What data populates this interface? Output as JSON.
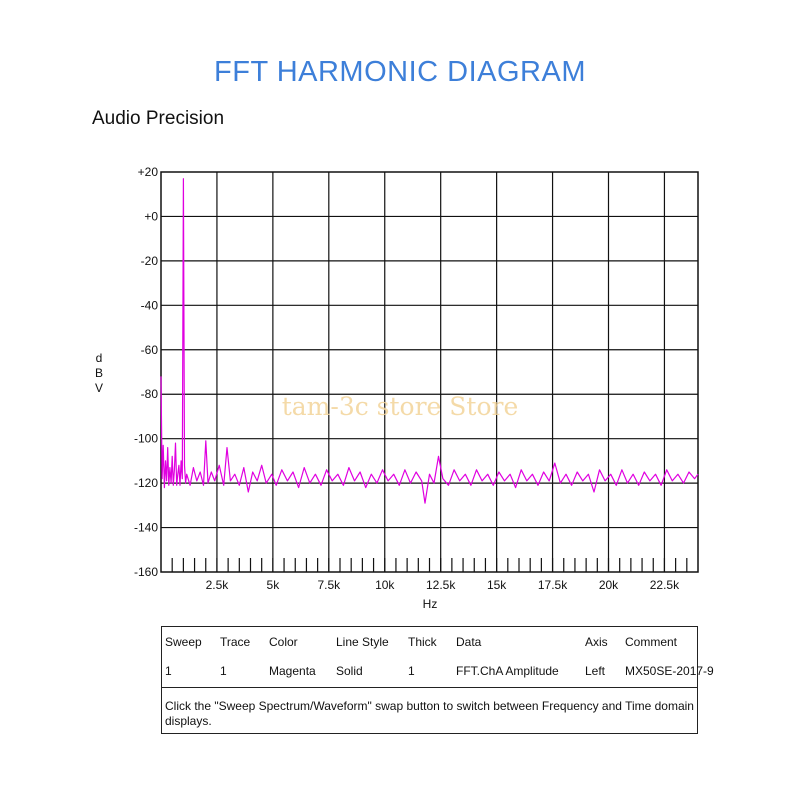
{
  "header": {
    "title": "FFT  HARMONIC DIAGRAM",
    "brand": "Audio Precision"
  },
  "watermark": "tam-3c store Store",
  "chart_data": {
    "type": "line",
    "title": "",
    "xlabel": "Hz",
    "ylabel": "dBV",
    "ylabel_letters": [
      "d",
      "B",
      "V"
    ],
    "xlim": [
      0,
      24000
    ],
    "ylim": [
      -160,
      20
    ],
    "y_ticks": [
      "+20",
      "+0",
      "-20",
      "-40",
      "-60",
      "-80",
      "-100",
      "-120",
      "-140",
      "-160"
    ],
    "y_tick_values": [
      20,
      0,
      -20,
      -40,
      -60,
      -80,
      -100,
      -120,
      -140,
      -160
    ],
    "x_ticks": [
      "2.5k",
      "5k",
      "7.5k",
      "10k",
      "12.5k",
      "15k",
      "17.5k",
      "20k",
      "22.5k"
    ],
    "x_tick_values": [
      2500,
      5000,
      7500,
      10000,
      12500,
      15000,
      17500,
      20000,
      22500
    ],
    "grid": true,
    "series": [
      {
        "color": "#e000e0",
        "points": [
          [
            0,
            -72
          ],
          [
            50,
            -118
          ],
          [
            100,
            -103
          ],
          [
            150,
            -122
          ],
          [
            200,
            -110
          ],
          [
            250,
            -119
          ],
          [
            300,
            -104
          ],
          [
            350,
            -121
          ],
          [
            400,
            -113
          ],
          [
            450,
            -120
          ],
          [
            500,
            -108
          ],
          [
            550,
            -121
          ],
          [
            600,
            -114
          ],
          [
            650,
            -102
          ],
          [
            700,
            -121
          ],
          [
            750,
            -116
          ],
          [
            800,
            -112
          ],
          [
            850,
            -121
          ],
          [
            900,
            -110
          ],
          [
            950,
            -118
          ],
          [
            1000,
            17
          ],
          [
            1050,
            -112
          ],
          [
            1100,
            -120
          ],
          [
            1150,
            -116
          ],
          [
            1300,
            -121
          ],
          [
            1450,
            -113
          ],
          [
            1600,
            -119
          ],
          [
            1750,
            -115
          ],
          [
            1900,
            -121
          ],
          [
            2000,
            -101
          ],
          [
            2100,
            -120
          ],
          [
            2250,
            -115
          ],
          [
            2400,
            -119
          ],
          [
            2600,
            -112
          ],
          [
            2800,
            -121
          ],
          [
            2950,
            -104
          ],
          [
            3100,
            -119
          ],
          [
            3300,
            -116
          ],
          [
            3500,
            -121
          ],
          [
            3700,
            -113
          ],
          [
            3900,
            -124
          ],
          [
            4100,
            -115
          ],
          [
            4300,
            -119
          ],
          [
            4500,
            -112
          ],
          [
            4700,
            -120
          ],
          [
            4950,
            -116
          ],
          [
            5150,
            -121
          ],
          [
            5400,
            -114
          ],
          [
            5650,
            -119
          ],
          [
            5900,
            -115
          ],
          [
            6150,
            -122
          ],
          [
            6400,
            -113
          ],
          [
            6650,
            -120
          ],
          [
            6900,
            -116
          ],
          [
            7150,
            -121
          ],
          [
            7400,
            -114
          ],
          [
            7650,
            -119
          ],
          [
            7900,
            -116
          ],
          [
            8150,
            -121
          ],
          [
            8400,
            -113
          ],
          [
            8650,
            -119
          ],
          [
            8900,
            -115
          ],
          [
            9150,
            -122
          ],
          [
            9400,
            -116
          ],
          [
            9650,
            -120
          ],
          [
            9900,
            -114
          ],
          [
            10150,
            -119
          ],
          [
            10400,
            -116
          ],
          [
            10650,
            -121
          ],
          [
            10900,
            -114
          ],
          [
            11150,
            -120
          ],
          [
            11400,
            -115
          ],
          [
            11650,
            -119
          ],
          [
            11800,
            -129
          ],
          [
            12000,
            -116
          ],
          [
            12200,
            -120
          ],
          [
            12400,
            -108
          ],
          [
            12600,
            -118
          ],
          [
            12850,
            -121
          ],
          [
            13100,
            -114
          ],
          [
            13350,
            -119
          ],
          [
            13600,
            -116
          ],
          [
            13850,
            -121
          ],
          [
            14100,
            -114
          ],
          [
            14350,
            -119
          ],
          [
            14600,
            -116
          ],
          [
            14850,
            -121
          ],
          [
            15100,
            -115
          ],
          [
            15350,
            -119
          ],
          [
            15600,
            -116
          ],
          [
            15850,
            -122
          ],
          [
            16100,
            -114
          ],
          [
            16350,
            -119
          ],
          [
            16600,
            -116
          ],
          [
            16850,
            -121
          ],
          [
            17100,
            -115
          ],
          [
            17350,
            -119
          ],
          [
            17600,
            -111
          ],
          [
            17850,
            -120
          ],
          [
            18100,
            -116
          ],
          [
            18350,
            -121
          ],
          [
            18600,
            -115
          ],
          [
            18850,
            -119
          ],
          [
            19100,
            -116
          ],
          [
            19350,
            -124
          ],
          [
            19600,
            -114
          ],
          [
            19850,
            -119
          ],
          [
            20100,
            -116
          ],
          [
            20350,
            -121
          ],
          [
            20600,
            -114
          ],
          [
            20850,
            -120
          ],
          [
            21100,
            -116
          ],
          [
            21350,
            -121
          ],
          [
            21600,
            -115
          ],
          [
            21850,
            -119
          ],
          [
            22100,
            -116
          ],
          [
            22350,
            -121
          ],
          [
            22600,
            -114
          ],
          [
            22850,
            -119
          ],
          [
            23100,
            -116
          ],
          [
            23350,
            -120
          ],
          [
            23600,
            -115
          ],
          [
            23850,
            -118
          ],
          [
            24000,
            -116
          ]
        ]
      }
    ]
  },
  "legend": {
    "headers": [
      "Sweep",
      "Trace",
      "Color",
      "Line Style",
      "Thick",
      "Data",
      "Axis",
      "Comment"
    ],
    "row": [
      "1",
      "1",
      "Magenta",
      "Solid",
      "1",
      "FFT.ChA Amplitude",
      "Left",
      "MX50SE-2017-9"
    ],
    "note": "Click the \"Sweep Spectrum/Waveform\" swap button to switch between Frequency and Time domain displays."
  }
}
